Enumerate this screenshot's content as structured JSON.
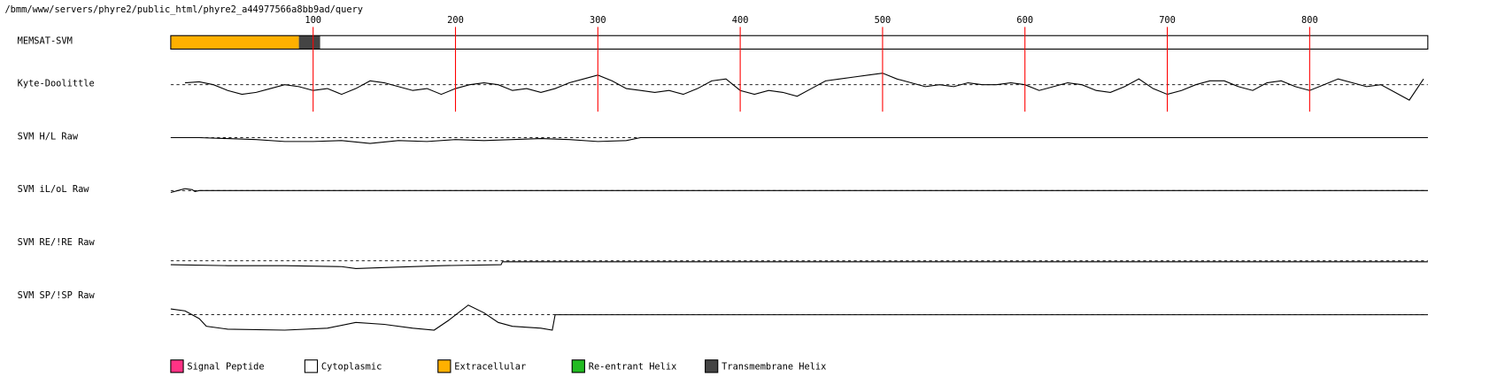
{
  "path": "/bmm/www/servers/phyre2/public_html/phyre2_a44977566a8bb9ad/query",
  "chart_data": {
    "type": "tracks",
    "xlim": [
      0,
      883
    ],
    "xticks": [
      100,
      200,
      300,
      400,
      500,
      600,
      700,
      800
    ],
    "memsat": {
      "name": "MEMSAT-SVM",
      "segments": [
        {
          "start": 0,
          "end": 90,
          "color": "#ffb000"
        },
        {
          "start": 90,
          "end": 105,
          "color": "#444444"
        },
        {
          "start": 105,
          "end": 883,
          "color": "#ffffff"
        }
      ]
    },
    "series": [
      {
        "name": "Kyte-Doolittle",
        "color": "#000000",
        "x": [
          10,
          20,
          30,
          40,
          50,
          60,
          70,
          80,
          90,
          100,
          110,
          120,
          130,
          140,
          150,
          160,
          170,
          180,
          190,
          200,
          210,
          220,
          230,
          240,
          250,
          260,
          270,
          280,
          290,
          300,
          310,
          320,
          330,
          340,
          350,
          360,
          370,
          380,
          390,
          400,
          410,
          420,
          430,
          440,
          450,
          460,
          470,
          480,
          490,
          500,
          510,
          520,
          530,
          540,
          550,
          560,
          570,
          580,
          590,
          600,
          610,
          620,
          630,
          640,
          650,
          660,
          670,
          680,
          690,
          700,
          710,
          720,
          730,
          740,
          750,
          760,
          770,
          780,
          790,
          800,
          810,
          820,
          830,
          840,
          850,
          860,
          870,
          880
        ],
        "values": [
          2,
          3,
          0,
          -6,
          -10,
          -8,
          -4,
          0,
          -2,
          -6,
          -4,
          -10,
          -4,
          4,
          2,
          -2,
          -6,
          -4,
          -10,
          -4,
          0,
          2,
          0,
          -6,
          -4,
          -8,
          -4,
          2,
          6,
          10,
          4,
          -4,
          -6,
          -8,
          -6,
          -10,
          -4,
          4,
          6,
          -6,
          -10,
          -6,
          -8,
          -12,
          -4,
          4,
          6,
          8,
          10,
          12,
          6,
          2,
          -2,
          0,
          -2,
          2,
          0,
          0,
          2,
          0,
          -6,
          -2,
          2,
          0,
          -6,
          -8,
          -2,
          6,
          -4,
          -10,
          -6,
          0,
          4,
          4,
          -2,
          -6,
          2,
          4,
          -2,
          -6,
          0,
          6,
          2,
          -2,
          0,
          -8,
          -16,
          6
        ]
      },
      {
        "name": "SVM H/L Raw",
        "color": "#000000",
        "x": [
          0,
          20,
          40,
          60,
          80,
          100,
          120,
          140,
          160,
          180,
          200,
          220,
          240,
          260,
          280,
          300,
          320,
          330,
          883
        ],
        "values": [
          0,
          0,
          -1,
          -2,
          -4,
          -4,
          -3,
          -6,
          -3,
          -4,
          -2,
          -3,
          -2,
          -1,
          -2,
          -4,
          -3,
          0,
          0
        ]
      },
      {
        "name": "SVM iL/oL Raw",
        "color": "#000000",
        "x": [
          0,
          5,
          10,
          15,
          17,
          20,
          883
        ],
        "values": [
          -2,
          0,
          2,
          1,
          -1,
          0,
          0
        ]
      },
      {
        "name": "SVM RE/!RE Raw",
        "color": "#000000",
        "x": [
          0,
          40,
          80,
          120,
          130,
          150,
          190,
          232,
          233,
          883
        ],
        "values": [
          -4,
          -5,
          -5,
          -6,
          -8,
          -7,
          -5,
          -4,
          -1,
          -1
        ]
      },
      {
        "name": "SVM SP/!SP Raw",
        "color": "#000000",
        "x": [
          0,
          10,
          20,
          25,
          40,
          80,
          110,
          130,
          150,
          170,
          185,
          195,
          209,
          220,
          230,
          240,
          260,
          268,
          270,
          883
        ],
        "values": [
          6,
          4,
          -4,
          -12,
          -15,
          -16,
          -14,
          -8,
          -10,
          -14,
          -16,
          -6,
          10,
          2,
          -8,
          -12,
          -14,
          -16,
          0,
          0
        ]
      }
    ],
    "legend": [
      {
        "name": "Signal Peptide",
        "color": "#ff3385"
      },
      {
        "name": "Cytoplasmic",
        "color": "#ffffff"
      },
      {
        "name": "Extracellular",
        "color": "#ffb000"
      },
      {
        "name": "Re-entrant Helix",
        "color": "#22bb22"
      },
      {
        "name": "Transmembrane Helix",
        "color": "#444444"
      }
    ]
  }
}
